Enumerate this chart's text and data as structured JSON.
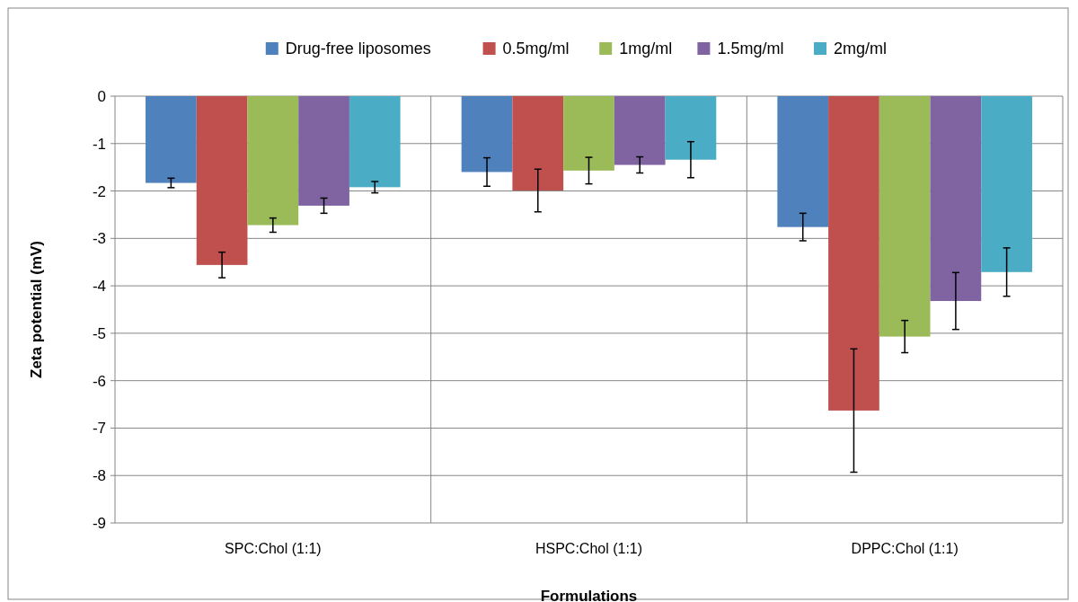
{
  "chart_data": {
    "type": "bar",
    "xlabel": "Formulations",
    "ylabel": "Zeta potential (mV)",
    "categories": [
      "SPC:Chol (1:1)",
      "HSPC:Chol (1:1)",
      "DPPC:Chol (1:1)"
    ],
    "series": [
      {
        "name": "Drug-free liposomes",
        "color": "#4f81bd",
        "values": [
          -1.83,
          -1.6,
          -2.76
        ],
        "errors": [
          0.1,
          0.3,
          0.29
        ]
      },
      {
        "name": "0.5mg/ml",
        "color": "#c0504d",
        "values": [
          -3.56,
          -1.99,
          -6.63
        ],
        "errors": [
          0.27,
          0.45,
          1.3
        ]
      },
      {
        "name": "1mg/ml",
        "color": "#9bbb59",
        "values": [
          -2.72,
          -1.57,
          -5.07
        ],
        "errors": [
          0.15,
          0.28,
          0.34
        ]
      },
      {
        "name": "1.5mg/ml",
        "color": "#8064a2",
        "values": [
          -2.31,
          -1.45,
          -4.32
        ],
        "errors": [
          0.16,
          0.17,
          0.6
        ]
      },
      {
        "name": "2mg/ml",
        "color": "#4bacc6",
        "values": [
          -1.92,
          -1.34,
          -3.71
        ],
        "errors": [
          0.12,
          0.38,
          0.51
        ]
      }
    ],
    "ylim": [
      -9,
      0
    ],
    "yticks": [
      0,
      -1,
      -2,
      -3,
      -4,
      -5,
      -6,
      -7,
      -8,
      -9
    ],
    "grid": true,
    "legend": "top"
  }
}
